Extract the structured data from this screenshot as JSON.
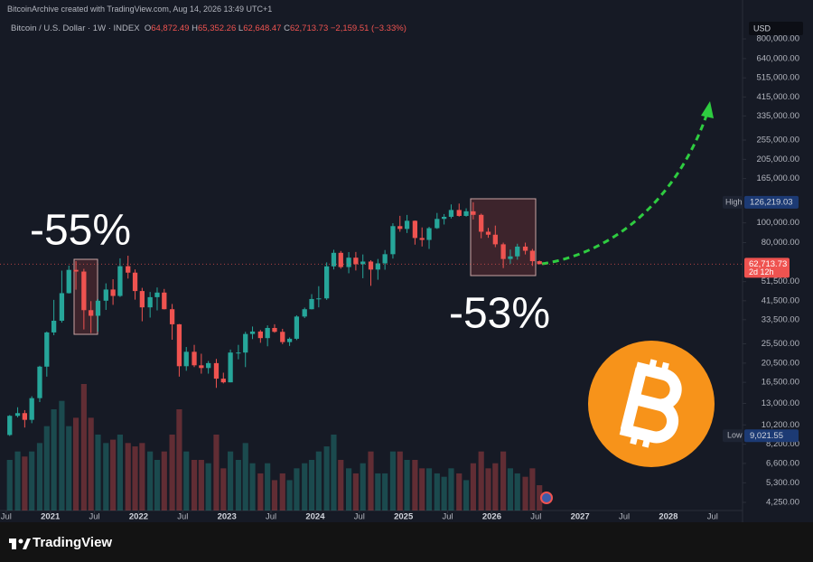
{
  "header": {
    "credit": "BitcoinArchive created with TradingView.com, Aug 14, 2026 13:49 UTC+1"
  },
  "legend": {
    "symbol": "Bitcoin / U.S. Dollar · 1W · INDEX",
    "open_prefix": "O",
    "open": "64,872.49",
    "high_prefix": "H",
    "high": "65,352.26",
    "low_prefix": "L",
    "low": "62,648.47",
    "close_prefix": "C",
    "close": "62,713.73",
    "change": "−2,159.51 (−3.33%)"
  },
  "footer": {
    "brand": "TradingView"
  },
  "chart_data": {
    "type": "candlestick",
    "currency": "USD",
    "log_scale": true,
    "grid": false,
    "up_color": "#26a69a",
    "down_color": "#ef5350",
    "annotations": [
      "-55%",
      "-53%"
    ],
    "xlim": [
      2020.43,
      2028.84
    ],
    "xticks": [
      {
        "value": 2020.5,
        "label": "Jul"
      },
      2021,
      {
        "value": 2021.5,
        "label": "Jul"
      },
      2022,
      {
        "value": 2022.5,
        "label": "Jul"
      },
      2023,
      {
        "value": 2023.5,
        "label": "Jul"
      },
      2024,
      {
        "value": 2024.5,
        "label": "Jul"
      },
      2025,
      {
        "value": 2025.5,
        "label": "Jul"
      },
      2026,
      {
        "value": 2026.5,
        "label": "Jul"
      },
      2027,
      {
        "value": 2027.5,
        "label": "Jul"
      },
      2028,
      {
        "value": 2028.5,
        "label": "Jul"
      }
    ],
    "ylim": [
      3877,
      1012000
    ],
    "yticks": [
      {
        "value": 4250,
        "label": "4,250.00"
      },
      {
        "value": 5300,
        "label": "5,300.00"
      },
      {
        "value": 6600,
        "label": "6,600.00"
      },
      {
        "value": 8200,
        "label": "8,200.00"
      },
      {
        "value": 10200,
        "label": "10,200.00"
      },
      {
        "value": 13000,
        "label": "13,000.00"
      },
      {
        "value": 16500,
        "label": "16,500.00"
      },
      {
        "value": 20500,
        "label": "20,500.00"
      },
      {
        "value": 25500,
        "label": "25,500.00"
      },
      {
        "value": 33500,
        "label": "33,500.00"
      },
      {
        "value": 41500,
        "label": "41,500.00"
      },
      {
        "value": 51500,
        "label": "51,500.00"
      },
      {
        "value": 80000,
        "label": "80,000.00"
      },
      {
        "value": 100000,
        "label": "100,000.00"
      },
      {
        "value": 165000,
        "label": "165,000.00"
      },
      {
        "value": 205000,
        "label": "205,000.00"
      },
      {
        "value": 255000,
        "label": "255,000.00"
      },
      {
        "value": 335000,
        "label": "335,000.00"
      },
      {
        "value": 415000,
        "label": "415,000.00"
      },
      {
        "value": 515000,
        "label": "515,000.00"
      },
      {
        "value": 640000,
        "label": "640,000.00"
      },
      {
        "value": 800000,
        "label": "800,000.00"
      }
    ],
    "high_marker": {
      "name": "High",
      "value": 126219.03,
      "label": "126,219.03"
    },
    "low_marker": {
      "name": "Low",
      "value": 9021.55,
      "label": "9,021.55"
    },
    "last_price": {
      "value": 62713.73,
      "label": "62,713.73",
      "countdown": "2d 12h"
    },
    "x": [
      2020.54,
      2020.63,
      2020.71,
      2020.79,
      2020.88,
      2020.96,
      2021.04,
      2021.13,
      2021.21,
      2021.29,
      2021.38,
      2021.46,
      2021.54,
      2021.63,
      2021.71,
      2021.79,
      2021.88,
      2021.96,
      2022.04,
      2022.13,
      2022.21,
      2022.29,
      2022.38,
      2022.46,
      2022.54,
      2022.63,
      2022.71,
      2022.79,
      2022.88,
      2022.96,
      2023.04,
      2023.13,
      2023.21,
      2023.29,
      2023.38,
      2023.46,
      2023.54,
      2023.63,
      2023.71,
      2023.79,
      2023.88,
      2023.96,
      2024.04,
      2024.13,
      2024.21,
      2024.29,
      2024.38,
      2024.46,
      2024.54,
      2024.63,
      2024.71,
      2024.79,
      2024.88,
      2024.96,
      2025.04,
      2025.13,
      2025.21,
      2025.29,
      2025.38,
      2025.46,
      2025.54,
      2025.63,
      2025.71,
      2025.79,
      2025.88,
      2025.96,
      2026.04,
      2026.13,
      2026.21,
      2026.29,
      2026.38,
      2026.46,
      2026.54
    ],
    "ohlc": [
      [
        9100,
        11400,
        9000,
        11300
      ],
      [
        11300,
        12450,
        11100,
        11650
      ],
      [
        11650,
        12050,
        9900,
        10800
      ],
      [
        10800,
        14100,
        10400,
        13800
      ],
      [
        13800,
        19900,
        13200,
        19700
      ],
      [
        19700,
        29300,
        17600,
        29000
      ],
      [
        29000,
        41900,
        28100,
        33100
      ],
      [
        33100,
        58300,
        32400,
        45200
      ],
      [
        45200,
        61700,
        45000,
        58800
      ],
      [
        58800,
        64900,
        47000,
        57700
      ],
      [
        57700,
        59500,
        30000,
        37300
      ],
      [
        37300,
        41300,
        28800,
        35000
      ],
      [
        35000,
        42300,
        29300,
        41500
      ],
      [
        41500,
        50500,
        37400,
        47100
      ],
      [
        47100,
        52900,
        39600,
        43800
      ],
      [
        43800,
        67000,
        43300,
        61300
      ],
      [
        61300,
        69000,
        53300,
        57000
      ],
      [
        57000,
        59100,
        42000,
        46300
      ],
      [
        46300,
        48000,
        32900,
        38500
      ],
      [
        38500,
        45800,
        34300,
        43200
      ],
      [
        43200,
        48200,
        37200,
        45500
      ],
      [
        45500,
        47400,
        37600,
        37700
      ],
      [
        37700,
        40000,
        26700,
        31800
      ],
      [
        31800,
        31900,
        17600,
        19800
      ],
      [
        19800,
        24600,
        18800,
        23300
      ],
      [
        23300,
        25200,
        19600,
        20000
      ],
      [
        20000,
        22800,
        18200,
        19400
      ],
      [
        19400,
        21000,
        18200,
        20500
      ],
      [
        20500,
        21500,
        15500,
        17200
      ],
      [
        17200,
        18400,
        16300,
        16500
      ],
      [
        16500,
        23900,
        16500,
        23100
      ],
      [
        23100,
        25200,
        21400,
        23100
      ],
      [
        23100,
        29200,
        19600,
        28500
      ],
      [
        28500,
        31000,
        26900,
        29300
      ],
      [
        29300,
        29800,
        25800,
        27200
      ],
      [
        27200,
        31400,
        24800,
        30500
      ],
      [
        30500,
        31800,
        28900,
        29200
      ],
      [
        29200,
        30200,
        25400,
        26000
      ],
      [
        26000,
        27400,
        24900,
        27000
      ],
      [
        27000,
        35200,
        26600,
        34700
      ],
      [
        34700,
        38400,
        34100,
        37700
      ],
      [
        37700,
        44700,
        37600,
        42300
      ],
      [
        42300,
        48900,
        38500,
        42600
      ],
      [
        42600,
        64000,
        41900,
        61200
      ],
      [
        61200,
        73800,
        59100,
        71300
      ],
      [
        71300,
        72800,
        59600,
        60700
      ],
      [
        60700,
        71900,
        56600,
        67500
      ],
      [
        67500,
        72000,
        58400,
        62700
      ],
      [
        62700,
        70000,
        53500,
        64600
      ],
      [
        64600,
        65600,
        49100,
        59000
      ],
      [
        59000,
        66500,
        52600,
        63300
      ],
      [
        63300,
        73600,
        58900,
        70200
      ],
      [
        70200,
        99600,
        66800,
        96400
      ],
      [
        96400,
        108300,
        90500,
        93400
      ],
      [
        93400,
        109400,
        89200,
        102400
      ],
      [
        102400,
        102800,
        78200,
        84300
      ],
      [
        84300,
        95000,
        76600,
        82500
      ],
      [
        82500,
        95700,
        74500,
        94200
      ],
      [
        94200,
        111900,
        93400,
        104600
      ],
      [
        104600,
        110500,
        98200,
        107100
      ],
      [
        107100,
        123200,
        105100,
        115700
      ],
      [
        115700,
        124400,
        107300,
        108200
      ],
      [
        108200,
        117900,
        107300,
        114000
      ],
      [
        114000,
        126219,
        104000,
        109500
      ],
      [
        109500,
        111000,
        84000,
        90500
      ],
      [
        90500,
        94500,
        84500,
        87500
      ],
      [
        87500,
        97000,
        76000,
        78500
      ],
      [
        78500,
        80000,
        60000,
        66500
      ],
      [
        66500,
        74000,
        63000,
        68500
      ],
      [
        68500,
        79000,
        66000,
        76500
      ],
      [
        76500,
        80000,
        70000,
        73000
      ],
      [
        73000,
        74500,
        61500,
        64872
      ],
      [
        64872,
        65352,
        62648,
        62713
      ]
    ],
    "volume": [
      30,
      35,
      32,
      35,
      40,
      50,
      60,
      65,
      50,
      55,
      75,
      55,
      45,
      40,
      42,
      45,
      40,
      38,
      40,
      35,
      30,
      35,
      45,
      60,
      35,
      30,
      30,
      28,
      45,
      25,
      35,
      30,
      40,
      28,
      22,
      28,
      18,
      22,
      18,
      25,
      28,
      30,
      35,
      38,
      45,
      30,
      25,
      22,
      28,
      35,
      22,
      22,
      35,
      35,
      30,
      30,
      25,
      25,
      22,
      20,
      25,
      22,
      18,
      28,
      35,
      25,
      28,
      35,
      25,
      22,
      20,
      25,
      15
    ]
  }
}
